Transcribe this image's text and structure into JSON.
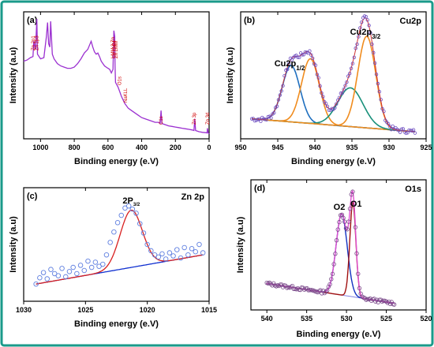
{
  "colors": {
    "border": "#1a9a8a",
    "survey": "#9b30d0",
    "points": "#6c4cc0",
    "cu_blue": "#1f6fbf",
    "cu_orange": "#f08c1e",
    "cu_green": "#18907a",
    "zn_points": "#5f7fe0",
    "zn_fit": "#d82020",
    "zn_base": "#1030d0",
    "o_points": "#7a4a8a",
    "o_envelope": "#e050d0",
    "o_o1": "#a01010",
    "o_o2": "#1030c0"
  },
  "chart_data": [
    {
      "type": "line",
      "panel": "(a)",
      "xlabel": "Binding energy (e.V)",
      "ylabel": "Intensity (a.u)",
      "xlim": [
        1100,
        0
      ],
      "xticks": [
        1000,
        800,
        600,
        400,
        200,
        0
      ],
      "series": [
        {
          "x": [
            1100,
            1080,
            1060,
            1045,
            1040,
            1030,
            1022,
            1018,
            1000,
            980,
            965,
            958,
            952,
            945,
            940,
            930,
            920,
            900,
            880,
            860,
            840,
            820,
            800,
            780,
            760,
            740,
            720,
            700,
            690,
            680,
            670,
            660,
            650,
            640,
            620,
            600,
            590,
            580,
            570,
            565,
            560,
            558,
            555,
            540,
            530,
            520,
            500,
            480,
            460,
            440,
            420,
            400,
            380,
            360,
            340,
            320,
            300,
            290,
            285,
            280,
            260,
            240,
            220,
            200,
            180,
            160,
            140,
            120,
            100,
            90,
            85,
            80,
            60,
            40,
            20,
            12,
            10,
            5,
            0
          ],
          "y": [
            0.62,
            0.63,
            0.65,
            0.66,
            0.79,
            0.72,
            0.98,
            0.68,
            0.64,
            0.65,
            0.83,
            0.95,
            0.77,
            0.74,
            0.96,
            0.68,
            0.64,
            0.6,
            0.58,
            0.57,
            0.56,
            0.56,
            0.57,
            0.6,
            0.64,
            0.69,
            0.72,
            0.79,
            0.74,
            0.7,
            0.68,
            0.69,
            0.66,
            0.62,
            0.58,
            0.56,
            0.55,
            0.52,
            0.55,
            0.88,
            0.83,
            0.58,
            0.44,
            0.4,
            0.36,
            0.32,
            0.26,
            0.22,
            0.2,
            0.18,
            0.16,
            0.14,
            0.13,
            0.12,
            0.11,
            0.1,
            0.1,
            0.09,
            0.2,
            0.09,
            0.08,
            0.07,
            0.065,
            0.06,
            0.055,
            0.05,
            0.045,
            0.04,
            0.035,
            0.03,
            0.13,
            0.03,
            0.02,
            0.015,
            0.012,
            0.01,
            0.05,
            0.01,
            0.0
          ]
        }
      ],
      "annotations": [
        {
          "text": "Zn 2p1",
          "x": 1045
        },
        {
          "text": "Zn 2p3",
          "x": 1022
        },
        {
          "text": "LMM 2 Zn",
          "x": 570
        },
        {
          "text": "Cu LMM",
          "x": 565
        },
        {
          "text": "Zn LMM",
          "x": 552
        },
        {
          "text": "O1s",
          "x": 531
        },
        {
          "text": "NaKLL",
          "x": 497
        },
        {
          "text": "C1s",
          "x": 285
        },
        {
          "text": "Zn 3p",
          "x": 88
        },
        {
          "text": "Zn 3d",
          "x": 10
        }
      ]
    },
    {
      "type": "scatter",
      "panel": "(b)",
      "title": "Cu2p",
      "xlabel": "Binding energy (e.V)",
      "ylabel": "Intensity (a.u)",
      "xlim": [
        950,
        925
      ],
      "xticks": [
        950,
        945,
        940,
        935,
        930,
        925
      ],
      "peaks": [
        {
          "center": 943.2,
          "amp": 0.48,
          "sigma": 1.2,
          "color": "cu_blue"
        },
        {
          "center": 940.6,
          "amp": 0.55,
          "sigma": 1.2,
          "color": "cu_orange"
        },
        {
          "center": 935.2,
          "amp": 0.33,
          "sigma": 1.7,
          "color": "cu_green"
        },
        {
          "center": 933.0,
          "amp": 0.78,
          "sigma": 1.2,
          "color": "cu_orange"
        }
      ],
      "baseline": {
        "x": [
          948.5,
          926.5
        ],
        "y": [
          0.13,
          0.02
        ]
      },
      "annotations": [
        {
          "text": "Cu2p",
          "sub": "1/2",
          "x": 943.4
        },
        {
          "text": "Cu2p",
          "sub": "3/2",
          "x": 933.2
        }
      ]
    },
    {
      "type": "scatter",
      "panel": "(c)",
      "title": "Zn 2p",
      "xlabel": "Binding energy (e.V)",
      "ylabel": "Intensity (a.u)",
      "xlim": [
        1030,
        1015
      ],
      "xticks": [
        1030,
        1025,
        1020,
        1015
      ],
      "peak": {
        "center": 1021.3,
        "amp": 0.55,
        "sigma": 0.9
      },
      "baseline": {
        "x": [
          1029,
          1015.5
        ],
        "y": [
          0.12,
          0.4
        ]
      },
      "points_x": [
        1029,
        1028.7,
        1028.4,
        1028.1,
        1027.8,
        1027.5,
        1027.2,
        1026.9,
        1026.6,
        1026.3,
        1026,
        1025.7,
        1025.4,
        1025.1,
        1024.8,
        1024.5,
        1024.2,
        1023.9,
        1023.6,
        1023.3,
        1023,
        1022.7,
        1022.4,
        1022.1,
        1021.8,
        1021.5,
        1021.2,
        1020.9,
        1020.6,
        1020.3,
        1020,
        1019.7,
        1019.4,
        1019.1,
        1018.8,
        1018.5,
        1018.2,
        1017.9,
        1017.6,
        1017.3,
        1017,
        1016.7,
        1016.4,
        1016.1,
        1015.8,
        1015.5
      ],
      "points_y": [
        0.12,
        0.18,
        0.23,
        0.17,
        0.26,
        0.22,
        0.2,
        0.27,
        0.19,
        0.24,
        0.28,
        0.22,
        0.3,
        0.25,
        0.34,
        0.28,
        0.33,
        0.29,
        0.31,
        0.4,
        0.52,
        0.62,
        0.71,
        0.78,
        0.85,
        0.87,
        0.84,
        0.8,
        0.7,
        0.61,
        0.5,
        0.44,
        0.4,
        0.38,
        0.41,
        0.36,
        0.42,
        0.39,
        0.45,
        0.37,
        0.47,
        0.4,
        0.46,
        0.43,
        0.5,
        0.42
      ],
      "annotations": [
        {
          "text": "2P",
          "sub": "3/2",
          "x": 1021.3
        }
      ]
    },
    {
      "type": "scatter",
      "panel": "(d)",
      "title": "O1s",
      "xlabel": "Binding energy (e.V)",
      "ylabel": "Intensity (a.u)",
      "xlim": [
        542,
        520
      ],
      "xticks": [
        540,
        535,
        530,
        525,
        520
      ],
      "baseline": {
        "x": [
          540,
          524
        ],
        "y": [
          0.22,
          0.02
        ]
      },
      "peaks": [
        {
          "name": "O2",
          "center": 530.6,
          "amp": 0.82,
          "sigma": 0.7,
          "color": "o_o2"
        },
        {
          "name": "O1",
          "center": 529.2,
          "amp": 0.95,
          "sigma": 0.38,
          "color": "o_o1"
        }
      ],
      "annotations": [
        {
          "text": "O2",
          "x": 530.9
        },
        {
          "text": "O1",
          "x": 528.8
        }
      ]
    }
  ]
}
